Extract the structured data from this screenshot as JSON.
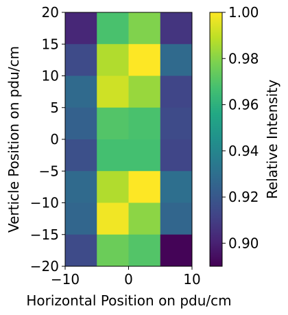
{
  "chart_data": {
    "type": "heatmap",
    "title": "",
    "xlabel": "Horizontal Position on pdu/cm",
    "ylabel": "Verticle Position on pdu/cm",
    "colorbar_label": "Relative Intensity",
    "colormap": "viridis",
    "xlim": [
      -10,
      10
    ],
    "ylim": [
      -20,
      20
    ],
    "clim": [
      0.89,
      1.0
    ],
    "x_ticks": [
      -10,
      0,
      10
    ],
    "y_ticks": [
      -20,
      -15,
      -10,
      -5,
      0,
      5,
      10,
      15,
      20
    ],
    "colorbar_ticks": [
      "0.90",
      "0.92",
      "0.94",
      "0.96",
      "0.98",
      "1.00"
    ],
    "colorbar_tick_values": [
      0.9,
      0.92,
      0.94,
      0.96,
      0.98,
      1.0
    ],
    "x_edges": [
      -10,
      -5,
      0,
      5,
      10
    ],
    "y_edges": [
      -20,
      -15,
      -10,
      -5,
      0,
      5,
      10,
      15,
      20
    ],
    "rows": [
      {
        "y_range": [
          15,
          20
        ],
        "values": [
          0.902,
          0.968,
          0.979,
          0.907
        ]
      },
      {
        "y_range": [
          10,
          15
        ],
        "values": [
          0.915,
          0.987,
          1.0,
          0.928
        ]
      },
      {
        "y_range": [
          5,
          10
        ],
        "values": [
          0.928,
          0.992,
          0.983,
          0.913
        ]
      },
      {
        "y_range": [
          0,
          5
        ],
        "values": [
          0.924,
          0.97,
          0.968,
          0.915
        ]
      },
      {
        "y_range": [
          -5,
          0
        ],
        "values": [
          0.917,
          0.967,
          0.967,
          0.913
        ]
      },
      {
        "y_range": [
          -10,
          -5
        ],
        "values": [
          0.928,
          0.987,
          1.0,
          0.93
        ]
      },
      {
        "y_range": [
          -15,
          -10
        ],
        "values": [
          0.926,
          0.998,
          0.981,
          0.926
        ]
      },
      {
        "y_range": [
          -20,
          -15
        ],
        "values": [
          0.915,
          0.975,
          0.97,
          0.891
        ]
      }
    ]
  }
}
